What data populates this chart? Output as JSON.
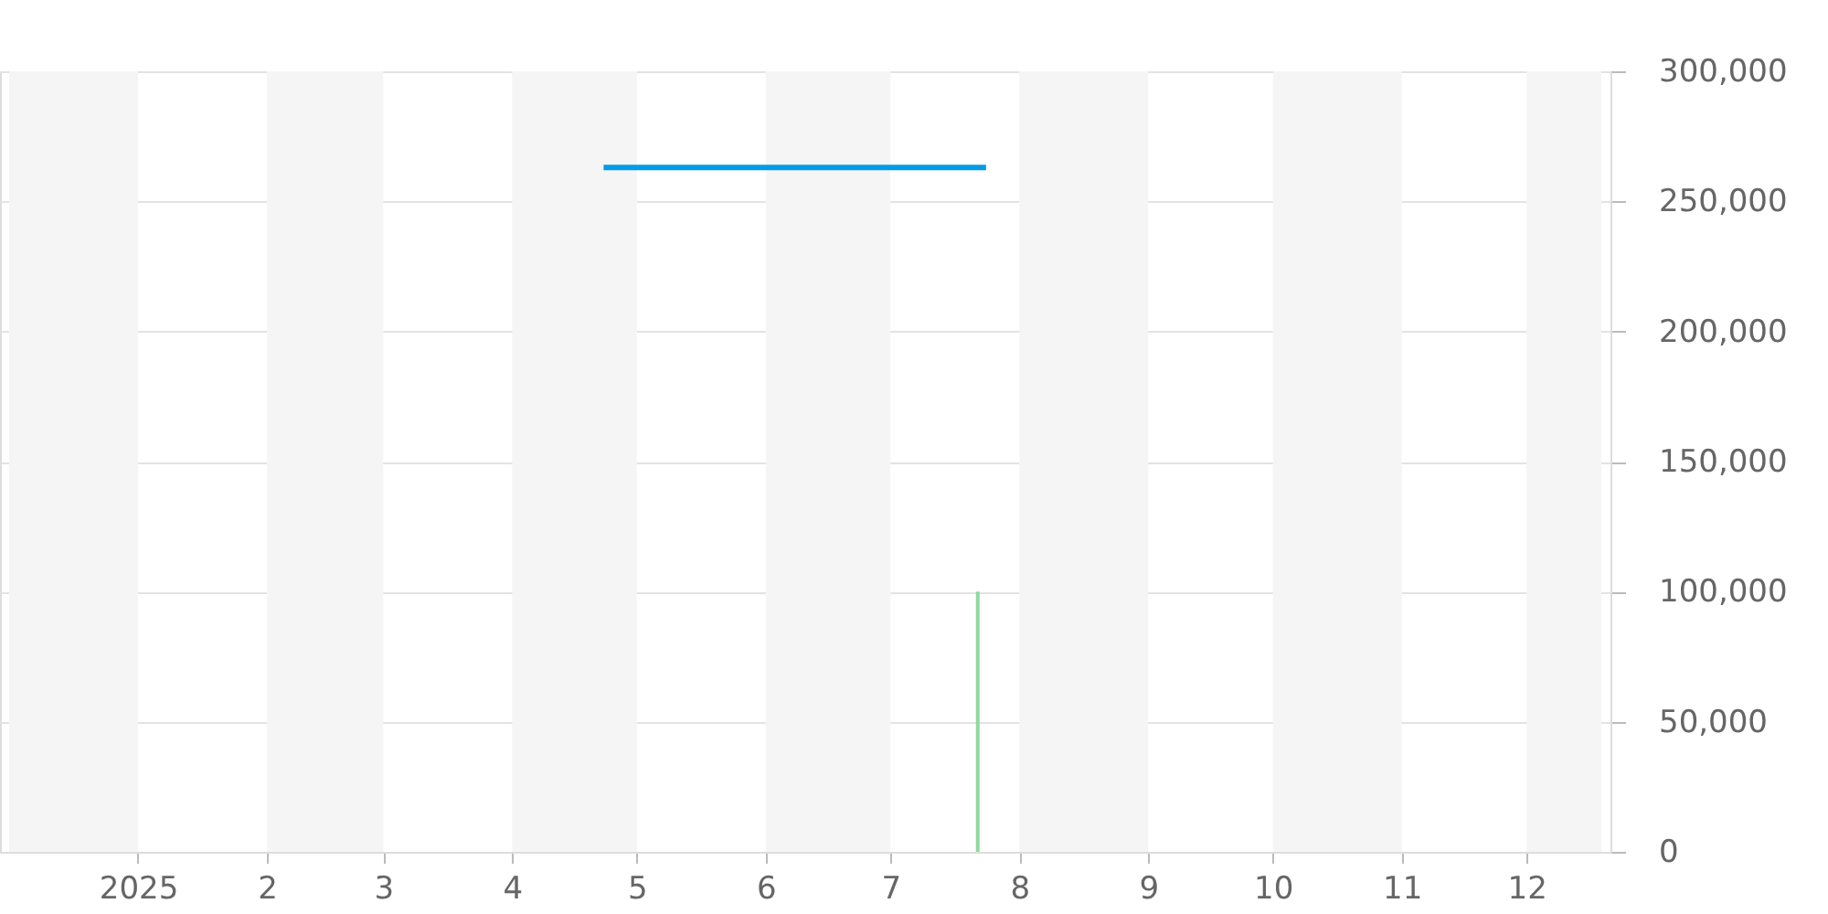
{
  "chart_data": {
    "type": "line",
    "series": [
      {
        "color": "#039be5",
        "x": [
          "2025-04-23",
          "2025-07-24"
        ],
        "values": [
          263000,
          263000
        ]
      },
      {
        "type": "bar",
        "color": "#8fd9a0",
        "x": [
          "2025-07-22"
        ],
        "values": [
          100000
        ]
      }
    ],
    "xlim": [
      "2024-12-01",
      "2025-12-19"
    ],
    "xticks": [
      {
        "value": "2025-01-01",
        "label": "2025"
      },
      {
        "value": "2025-02-01",
        "label": "2"
      },
      {
        "value": "2025-03-01",
        "label": "3"
      },
      {
        "value": "2025-04-01",
        "label": "4"
      },
      {
        "value": "2025-05-01",
        "label": "5"
      },
      {
        "value": "2025-06-01",
        "label": "6"
      },
      {
        "value": "2025-07-01",
        "label": "7"
      },
      {
        "value": "2025-08-01",
        "label": "8"
      },
      {
        "value": "2025-09-01",
        "label": "9"
      },
      {
        "value": "2025-10-01",
        "label": "10"
      },
      {
        "value": "2025-11-01",
        "label": "11"
      },
      {
        "value": "2025-12-01",
        "label": "12"
      }
    ],
    "ylim": [
      0,
      300000
    ],
    "yticks": [
      0,
      {
        "value": 50000,
        "label": "50,000"
      },
      {
        "value": 100000,
        "label": "100,000"
      },
      {
        "value": 150000,
        "label": "150,000"
      },
      {
        "value": 200000,
        "label": "200,000"
      },
      {
        "value": 250000,
        "label": "250,000"
      },
      {
        "value": 300000,
        "label": "300,000"
      }
    ],
    "grid": "y",
    "bands": [
      {
        "axis": "x",
        "from": "2024-12-01",
        "to": "2025-01-01",
        "color": "#f5f5f5"
      },
      {
        "axis": "x",
        "from": "2025-02-01",
        "to": "2025-03-01",
        "color": "#f5f5f5"
      },
      {
        "axis": "x",
        "from": "2025-04-01",
        "to": "2025-05-01",
        "color": "#f5f5f5"
      },
      {
        "axis": "x",
        "from": "2025-06-01",
        "to": "2025-07-01",
        "color": "#f5f5f5"
      },
      {
        "axis": "x",
        "from": "2025-08-01",
        "to": "2025-09-01",
        "color": "#f5f5f5"
      },
      {
        "axis": "x",
        "from": "2025-10-01",
        "to": "2025-11-01",
        "color": "#f5f5f5"
      },
      {
        "axis": "x",
        "from": "2025-12-01",
        "to": "2025-12-19",
        "color": "#f5f5f5"
      }
    ]
  }
}
